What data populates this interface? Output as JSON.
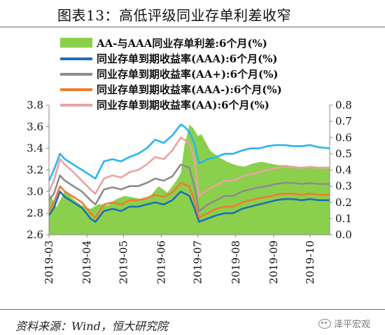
{
  "header": {
    "title": "图表13：高低评级同业存单利差收窄"
  },
  "footer": {
    "source": "资料来源：Wind，恒大研究院",
    "watermark": "泽平宏观"
  },
  "chart_data": {
    "type": "line",
    "x_ticks": [
      "2019-03",
      "2019-04",
      "2019-05",
      "2019-06",
      "2019-07",
      "2019-08",
      "2019-09",
      "2019-10"
    ],
    "x_range": [
      "2019-03-01",
      "2019-10-17"
    ],
    "y_left": {
      "ylim": [
        2.6,
        3.8
      ],
      "ticks": [
        "2.6",
        "2.8",
        "3.0",
        "3.2",
        "3.4",
        "3.6",
        "3.8"
      ]
    },
    "y_right": {
      "ylim": [
        0.0,
        0.8
      ],
      "ticks": [
        "0.0",
        "0.1",
        "0.2",
        "0.3",
        "0.4",
        "0.5",
        "0.6",
        "0.7",
        "0.8"
      ]
    },
    "legend_position": "top",
    "series": [
      {
        "name": "AA-与AAA同业存单利差:6个月(%)",
        "kind": "area",
        "axis": "right",
        "color": "#8bd04c",
        "points": [
          [
            "2019-03-01",
            0.26
          ],
          [
            "2019-03-07",
            0.17
          ],
          [
            "2019-03-14",
            0.27
          ],
          [
            "2019-03-21",
            0.22
          ],
          [
            "2019-03-28",
            0.18
          ],
          [
            "2019-04-04",
            0.16
          ],
          [
            "2019-04-11",
            0.19
          ],
          [
            "2019-04-18",
            0.18
          ],
          [
            "2019-04-25",
            0.22
          ],
          [
            "2019-05-02",
            0.24
          ],
          [
            "2019-05-09",
            0.23
          ],
          [
            "2019-05-16",
            0.22
          ],
          [
            "2019-05-23",
            0.24
          ],
          [
            "2019-05-30",
            0.3
          ],
          [
            "2019-06-06",
            0.26
          ],
          [
            "2019-06-13",
            0.33
          ],
          [
            "2019-06-17",
            0.38
          ],
          [
            "2019-06-20",
            0.55
          ],
          [
            "2019-06-24",
            0.68
          ],
          [
            "2019-06-27",
            0.66
          ],
          [
            "2019-07-01",
            0.61
          ],
          [
            "2019-07-04",
            0.62
          ],
          [
            "2019-07-11",
            0.52
          ],
          [
            "2019-07-18",
            0.48
          ],
          [
            "2019-07-25",
            0.45
          ],
          [
            "2019-08-01",
            0.43
          ],
          [
            "2019-08-08",
            0.42
          ],
          [
            "2019-08-15",
            0.44
          ],
          [
            "2019-08-22",
            0.45
          ],
          [
            "2019-08-29",
            0.44
          ],
          [
            "2019-09-05",
            0.43
          ],
          [
            "2019-09-12",
            0.43
          ],
          [
            "2019-09-19",
            0.42
          ],
          [
            "2019-09-26",
            0.42
          ],
          [
            "2019-10-03",
            0.42
          ],
          [
            "2019-10-10",
            0.42
          ],
          [
            "2019-10-17",
            0.42
          ]
        ]
      },
      {
        "name": "同业存单到期收益率(AAA):6个月(%)",
        "kind": "line",
        "axis": "left",
        "color": "#1f6fb4",
        "points": [
          [
            "2019-03-01",
            2.78
          ],
          [
            "2019-03-05",
            2.85
          ],
          [
            "2019-03-10",
            3.0
          ],
          [
            "2019-03-14",
            2.95
          ],
          [
            "2019-03-21",
            2.9
          ],
          [
            "2019-03-28",
            2.85
          ],
          [
            "2019-04-04",
            2.75
          ],
          [
            "2019-04-08",
            2.72
          ],
          [
            "2019-04-15",
            2.82
          ],
          [
            "2019-04-22",
            2.84
          ],
          [
            "2019-04-29",
            2.82
          ],
          [
            "2019-05-06",
            2.86
          ],
          [
            "2019-05-13",
            2.86
          ],
          [
            "2019-05-20",
            2.88
          ],
          [
            "2019-05-27",
            2.9
          ],
          [
            "2019-06-03",
            2.88
          ],
          [
            "2019-06-10",
            2.92
          ],
          [
            "2019-06-17",
            3.0
          ],
          [
            "2019-06-24",
            2.96
          ],
          [
            "2019-06-28",
            2.85
          ],
          [
            "2019-07-02",
            2.72
          ],
          [
            "2019-07-09",
            2.75
          ],
          [
            "2019-07-16",
            2.78
          ],
          [
            "2019-07-23",
            2.8
          ],
          [
            "2019-07-30",
            2.8
          ],
          [
            "2019-08-06",
            2.84
          ],
          [
            "2019-08-13",
            2.86
          ],
          [
            "2019-08-20",
            2.88
          ],
          [
            "2019-08-27",
            2.9
          ],
          [
            "2019-09-03",
            2.92
          ],
          [
            "2019-09-10",
            2.93
          ],
          [
            "2019-09-17",
            2.93
          ],
          [
            "2019-09-24",
            2.92
          ],
          [
            "2019-10-01",
            2.93
          ],
          [
            "2019-10-08",
            2.92
          ],
          [
            "2019-10-17",
            2.92
          ]
        ]
      },
      {
        "name": "同业存单到期收益率(AA+):6个月(%)",
        "kind": "line",
        "axis": "left",
        "color": "#8c8c8c",
        "points": [
          [
            "2019-03-01",
            2.92
          ],
          [
            "2019-03-05",
            2.98
          ],
          [
            "2019-03-10",
            3.15
          ],
          [
            "2019-03-14",
            3.1
          ],
          [
            "2019-03-21",
            3.05
          ],
          [
            "2019-03-28",
            3.0
          ],
          [
            "2019-04-04",
            2.92
          ],
          [
            "2019-04-08",
            2.88
          ],
          [
            "2019-04-15",
            3.02
          ],
          [
            "2019-04-22",
            3.04
          ],
          [
            "2019-04-29",
            3.02
          ],
          [
            "2019-05-06",
            3.05
          ],
          [
            "2019-05-13",
            3.05
          ],
          [
            "2019-05-20",
            3.08
          ],
          [
            "2019-05-27",
            3.12
          ],
          [
            "2019-06-03",
            3.1
          ],
          [
            "2019-06-10",
            3.14
          ],
          [
            "2019-06-17",
            3.25
          ],
          [
            "2019-06-24",
            3.22
          ],
          [
            "2019-06-28",
            3.05
          ],
          [
            "2019-07-02",
            2.82
          ],
          [
            "2019-07-09",
            2.88
          ],
          [
            "2019-07-16",
            2.92
          ],
          [
            "2019-07-23",
            2.96
          ],
          [
            "2019-07-30",
            2.96
          ],
          [
            "2019-08-06",
            3.0
          ],
          [
            "2019-08-13",
            3.02
          ],
          [
            "2019-08-20",
            3.04
          ],
          [
            "2019-08-27",
            3.05
          ],
          [
            "2019-09-03",
            3.07
          ],
          [
            "2019-09-10",
            3.08
          ],
          [
            "2019-09-17",
            3.08
          ],
          [
            "2019-09-24",
            3.07
          ],
          [
            "2019-10-01",
            3.08
          ],
          [
            "2019-10-08",
            3.07
          ],
          [
            "2019-10-17",
            3.07
          ]
        ]
      },
      {
        "name": "同业存单到期收益率(AAA-):6个月(%)",
        "kind": "line",
        "axis": "left",
        "color": "#ed7d31",
        "points": [
          [
            "2019-03-01",
            2.82
          ],
          [
            "2019-03-05",
            2.9
          ],
          [
            "2019-03-10",
            3.05
          ],
          [
            "2019-03-14",
            3.0
          ],
          [
            "2019-03-21",
            2.95
          ],
          [
            "2019-03-28",
            2.9
          ],
          [
            "2019-04-04",
            2.8
          ],
          [
            "2019-04-08",
            2.76
          ],
          [
            "2019-04-15",
            2.88
          ],
          [
            "2019-04-22",
            2.9
          ],
          [
            "2019-04-29",
            2.88
          ],
          [
            "2019-05-06",
            2.92
          ],
          [
            "2019-05-13",
            2.92
          ],
          [
            "2019-05-20",
            2.94
          ],
          [
            "2019-05-27",
            2.97
          ],
          [
            "2019-06-03",
            2.95
          ],
          [
            "2019-06-10",
            2.99
          ],
          [
            "2019-06-17",
            3.08
          ],
          [
            "2019-06-24",
            3.05
          ],
          [
            "2019-06-28",
            2.92
          ],
          [
            "2019-07-02",
            2.76
          ],
          [
            "2019-07-09",
            2.8
          ],
          [
            "2019-07-16",
            2.84
          ],
          [
            "2019-07-23",
            2.86
          ],
          [
            "2019-07-30",
            2.86
          ],
          [
            "2019-08-06",
            2.9
          ],
          [
            "2019-08-13",
            2.92
          ],
          [
            "2019-08-20",
            2.94
          ],
          [
            "2019-08-27",
            2.95
          ],
          [
            "2019-09-03",
            2.97
          ],
          [
            "2019-09-10",
            2.98
          ],
          [
            "2019-09-17",
            2.98
          ],
          [
            "2019-09-24",
            2.97
          ],
          [
            "2019-10-01",
            2.98
          ],
          [
            "2019-10-08",
            2.97
          ],
          [
            "2019-10-17",
            2.97
          ]
        ]
      },
      {
        "name": "同业存单到期收益率(AA):6个月(%)",
        "kind": "line",
        "axis": "left",
        "color": "#e8a3a3",
        "points": [
          [
            "2019-03-01",
            3.0
          ],
          [
            "2019-03-05",
            3.1
          ],
          [
            "2019-03-10",
            3.3
          ],
          [
            "2019-03-14",
            3.25
          ],
          [
            "2019-03-21",
            3.18
          ],
          [
            "2019-03-28",
            3.1
          ],
          [
            "2019-04-04",
            3.02
          ],
          [
            "2019-04-08",
            2.98
          ],
          [
            "2019-04-15",
            3.12
          ],
          [
            "2019-04-22",
            3.15
          ],
          [
            "2019-04-29",
            3.13
          ],
          [
            "2019-05-06",
            3.18
          ],
          [
            "2019-05-13",
            3.2
          ],
          [
            "2019-05-20",
            3.25
          ],
          [
            "2019-05-27",
            3.32
          ],
          [
            "2019-06-03",
            3.3
          ],
          [
            "2019-06-10",
            3.38
          ],
          [
            "2019-06-17",
            3.5
          ],
          [
            "2019-06-24",
            3.45
          ],
          [
            "2019-06-28",
            3.3
          ],
          [
            "2019-07-02",
            2.96
          ],
          [
            "2019-07-09",
            3.02
          ],
          [
            "2019-07-16",
            3.06
          ],
          [
            "2019-07-23",
            3.1
          ],
          [
            "2019-07-30",
            3.1
          ],
          [
            "2019-08-06",
            3.14
          ],
          [
            "2019-08-13",
            3.16
          ],
          [
            "2019-08-20",
            3.18
          ],
          [
            "2019-08-27",
            3.2
          ],
          [
            "2019-09-03",
            3.22
          ],
          [
            "2019-09-10",
            3.23
          ],
          [
            "2019-09-17",
            3.23
          ],
          [
            "2019-09-24",
            3.22
          ],
          [
            "2019-10-01",
            3.23
          ],
          [
            "2019-10-08",
            3.22
          ],
          [
            "2019-10-17",
            3.22
          ]
        ]
      },
      {
        "name": "",
        "kind": "line",
        "axis": "left",
        "color": "#29b6ee",
        "points": [
          [
            "2019-03-01",
            3.1
          ],
          [
            "2019-03-05",
            3.2
          ],
          [
            "2019-03-10",
            3.35
          ],
          [
            "2019-03-14",
            3.3
          ],
          [
            "2019-03-21",
            3.25
          ],
          [
            "2019-03-28",
            3.2
          ],
          [
            "2019-04-04",
            3.15
          ],
          [
            "2019-04-08",
            3.12
          ],
          [
            "2019-04-15",
            3.28
          ],
          [
            "2019-04-22",
            3.3
          ],
          [
            "2019-04-29",
            3.28
          ],
          [
            "2019-05-06",
            3.32
          ],
          [
            "2019-05-13",
            3.35
          ],
          [
            "2019-05-20",
            3.4
          ],
          [
            "2019-05-27",
            3.48
          ],
          [
            "2019-06-03",
            3.45
          ],
          [
            "2019-06-10",
            3.52
          ],
          [
            "2019-06-17",
            3.62
          ],
          [
            "2019-06-20",
            3.6
          ],
          [
            "2019-06-24",
            3.55
          ],
          [
            "2019-06-28",
            3.45
          ],
          [
            "2019-07-02",
            3.26
          ],
          [
            "2019-07-09",
            3.3
          ],
          [
            "2019-07-16",
            3.32
          ],
          [
            "2019-07-23",
            3.35
          ],
          [
            "2019-07-30",
            3.35
          ],
          [
            "2019-08-06",
            3.38
          ],
          [
            "2019-08-13",
            3.4
          ],
          [
            "2019-08-20",
            3.4
          ],
          [
            "2019-08-27",
            3.42
          ],
          [
            "2019-09-03",
            3.43
          ],
          [
            "2019-09-10",
            3.43
          ],
          [
            "2019-09-17",
            3.42
          ],
          [
            "2019-09-24",
            3.42
          ],
          [
            "2019-10-01",
            3.43
          ],
          [
            "2019-10-08",
            3.41
          ],
          [
            "2019-10-17",
            3.4
          ]
        ]
      }
    ]
  }
}
